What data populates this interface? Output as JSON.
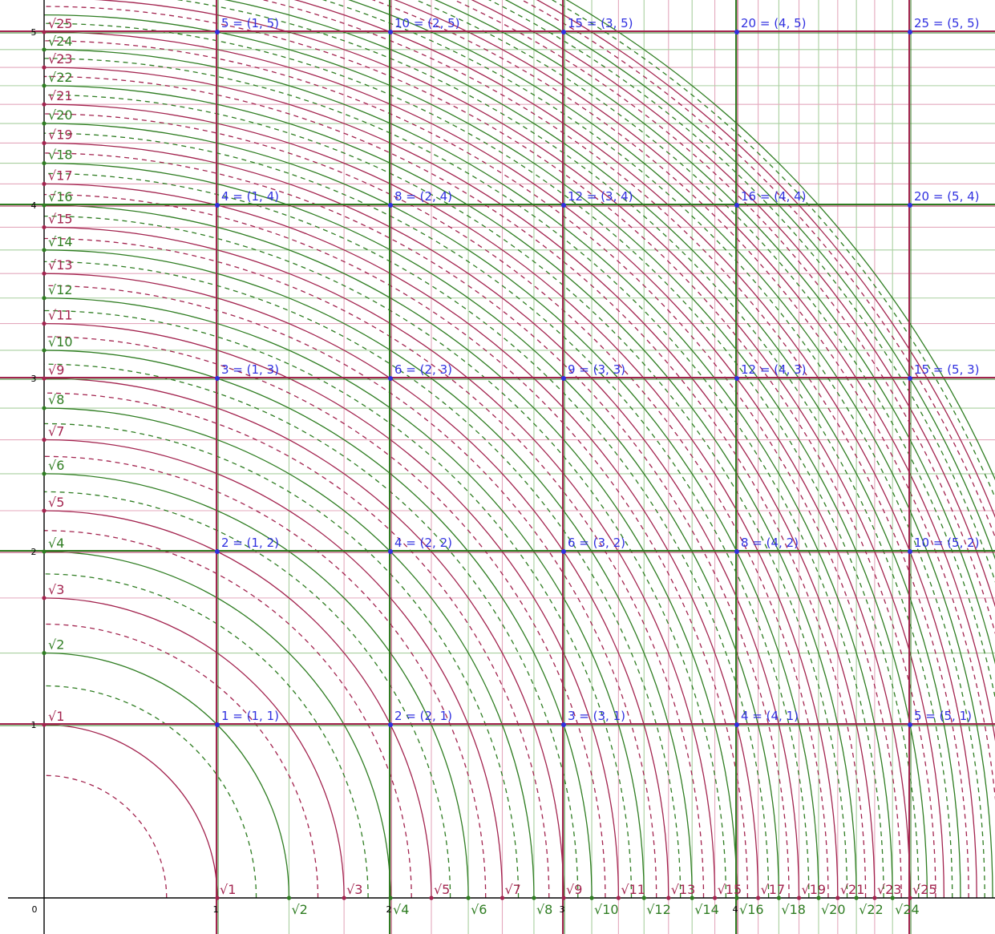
{
  "colors": {
    "crimson": "#a3244f",
    "green": "#2f7d22",
    "blue": "#3030e0",
    "crimson_light": "#e4a9bd",
    "green_light": "#a9cf9f",
    "axis": "#000000",
    "background": "#ffffff"
  },
  "chart_data": {
    "type": "diagram",
    "description_key": "square roots on axes",
    "x_range": [
      -0.2,
      5.5
    ],
    "y_range": [
      -0.07,
      5.05
    ],
    "axes": {
      "x_ticks": [
        "0",
        "1",
        "2",
        "3",
        "4"
      ],
      "y_ticks": [
        "1",
        "2",
        "3",
        "4",
        "5"
      ]
    },
    "sqrt_labels": [
      "√1",
      "√2",
      "√3",
      "√4",
      "√5",
      "√6",
      "√7",
      "√8",
      "√9",
      "√10",
      "√11",
      "√12",
      "√13",
      "√14",
      "√15",
      "√16",
      "√17",
      "√18",
      "√19",
      "√20",
      "√21",
      "√22",
      "√23",
      "√24",
      "√25"
    ],
    "grid_products": [
      {
        "label": "1 = (1, 1)",
        "x": 1,
        "y": 1
      },
      {
        "label": "2 = (2, 1)",
        "x": 2,
        "y": 1
      },
      {
        "label": "3 = (3, 1)",
        "x": 3,
        "y": 1
      },
      {
        "label": "4 = (4, 1)",
        "x": 4,
        "y": 1
      },
      {
        "label": "5 = (5, 1)",
        "x": 5,
        "y": 1
      },
      {
        "label": "2 = (1, 2)",
        "x": 1,
        "y": 2
      },
      {
        "label": "4 = (2, 2)",
        "x": 2,
        "y": 2
      },
      {
        "label": "6 = (3, 2)",
        "x": 3,
        "y": 2
      },
      {
        "label": "8 = (4, 2)",
        "x": 4,
        "y": 2
      },
      {
        "label": "10 = (5, 2)",
        "x": 5,
        "y": 2
      },
      {
        "label": "3 = (1, 3)",
        "x": 1,
        "y": 3
      },
      {
        "label": "6 = (2, 3)",
        "x": 2,
        "y": 3
      },
      {
        "label": "9 = (3, 3)",
        "x": 3,
        "y": 3
      },
      {
        "label": "12 = (4, 3)",
        "x": 4,
        "y": 3
      },
      {
        "label": "15 = (5, 3)",
        "x": 5,
        "y": 3
      },
      {
        "label": "4 = (1, 4)",
        "x": 1,
        "y": 4
      },
      {
        "label": "8 = (2, 4)",
        "x": 2,
        "y": 4
      },
      {
        "label": "12 = (3, 4)",
        "x": 3,
        "y": 4
      },
      {
        "label": "16 = (4, 4)",
        "x": 4,
        "y": 4
      },
      {
        "label": "20 = (5, 4)",
        "x": 5,
        "y": 4
      },
      {
        "label": "5 = (1, 5)",
        "x": 1,
        "y": 5
      },
      {
        "label": "10 = (2, 5)",
        "x": 2,
        "y": 5
      },
      {
        "label": "15 = (3, 5)",
        "x": 3,
        "y": 5
      },
      {
        "label": "20 = (4, 5)",
        "x": 4,
        "y": 5
      },
      {
        "label": "25 = (5, 5)",
        "x": 5,
        "y": 5
      }
    ]
  }
}
